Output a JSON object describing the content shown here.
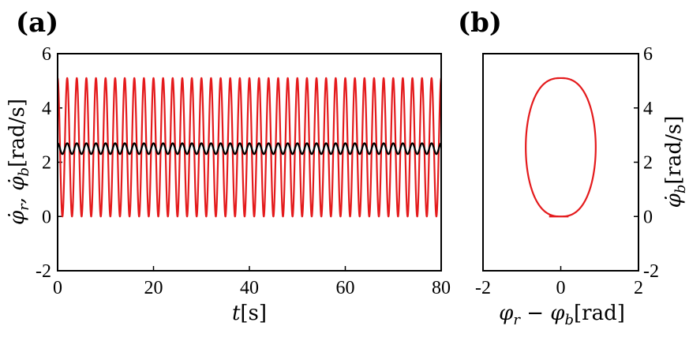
{
  "chart_data": [
    {
      "panel_label": "(a)",
      "type": "line",
      "xlabel": "t[s]",
      "ylabel": "φ̇r, φ̇b[rad/s]",
      "xlim": [
        0,
        80
      ],
      "ylim": [
        -2,
        6
      ],
      "xticks": [
        "0",
        "20",
        "40",
        "60",
        "80"
      ],
      "yticks": [
        "-2",
        "0",
        "2",
        "4",
        "6"
      ],
      "grid": false,
      "series": [
        {
          "color": "#e41a1c",
          "waveform": "sinusoid",
          "t_start": 0,
          "t_end": 80,
          "cycles": 40,
          "min": 0.0,
          "max": 5.1
        },
        {
          "color": "#000000",
          "waveform": "sinusoid",
          "t_start": 0,
          "t_end": 80,
          "cycles": 40,
          "min": 2.3,
          "max": 2.7
        }
      ]
    },
    {
      "panel_label": "(b)",
      "type": "line",
      "xlabel": "φr − φb[rad]",
      "ylabel": "φ̇b[rad/s]",
      "xlim": [
        -2,
        2
      ],
      "ylim": [
        -2,
        6
      ],
      "xticks": [
        "-2",
        "0",
        "2"
      ],
      "yticks": [
        "-2",
        "0",
        "2",
        "4",
        "6"
      ],
      "yaxis_side": "right",
      "grid": false,
      "series": [
        {
          "color": "#e41a1c",
          "shape": "closed-orbit",
          "x_range": [
            -0.9,
            0.9
          ],
          "y_range": [
            0.0,
            5.1
          ],
          "flat_bottom": [
            -0.3,
            0.2
          ]
        }
      ]
    }
  ]
}
